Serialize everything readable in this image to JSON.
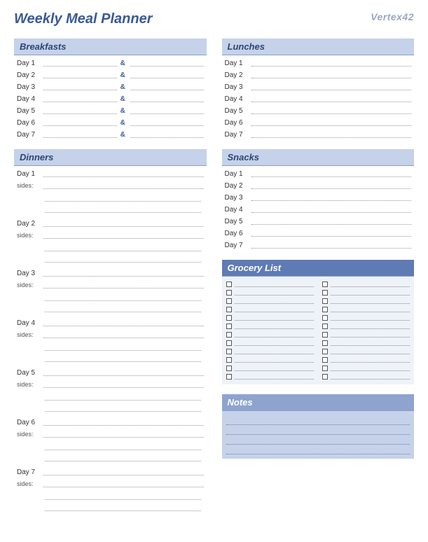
{
  "title": "Weekly Meal Planner",
  "logo": "Vertex42",
  "days": [
    "Day 1",
    "Day 2",
    "Day 3",
    "Day 4",
    "Day 5",
    "Day 6",
    "Day 7"
  ],
  "sections": {
    "breakfasts": {
      "title": "Breakfasts",
      "separator": "&",
      "header_bg": "#c5d2e9",
      "header_color": "#2d4474"
    },
    "lunches": {
      "title": "Lunches",
      "header_bg": "#c5d2e9",
      "header_color": "#2d4474"
    },
    "dinners": {
      "title": "Dinners",
      "sides_label": "sides:",
      "extra_lines_per_day": 2,
      "header_bg": "#c5d2e9",
      "header_color": "#2d4474"
    },
    "snacks": {
      "title": "Snacks",
      "header_bg": "#c5d2e9",
      "header_color": "#2d4474"
    },
    "grocery": {
      "title": "Grocery List",
      "rows": 12,
      "cols": 2,
      "header_bg": "#5f7bb5",
      "header_color": "#ffffff",
      "body_bg": "#eef2f9"
    },
    "notes": {
      "title": "Notes",
      "lines": 4,
      "header_bg": "#8ea4cf",
      "header_color": "#2d4474",
      "body_bg": "#c5d2e9"
    }
  },
  "colors": {
    "accent": "#3b5998",
    "section_light_bg": "#c5d2e9",
    "section_dark_bg": "#5f7bb5",
    "notes_header_bg": "#8ea4cf",
    "dotted": "#999999"
  }
}
